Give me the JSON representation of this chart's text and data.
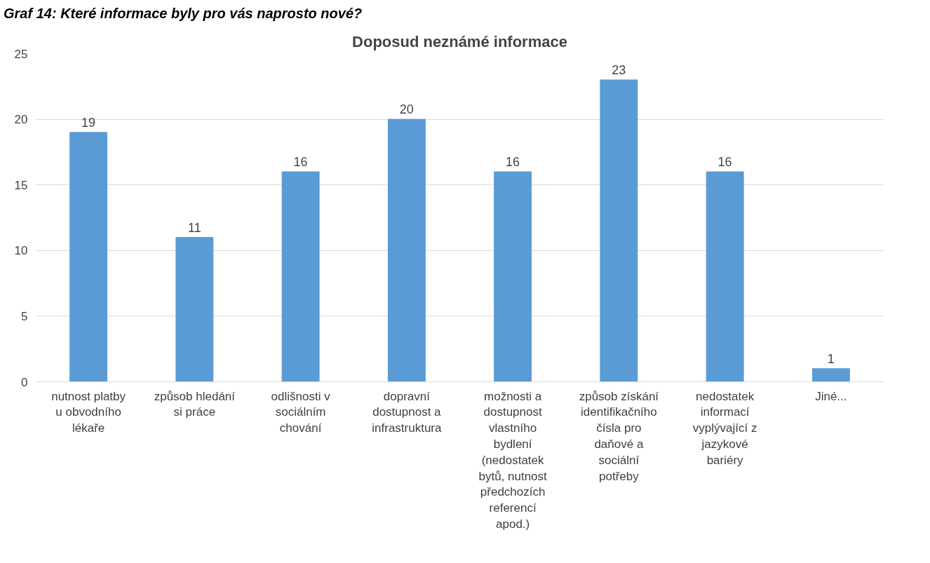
{
  "chart_data": {
    "type": "bar",
    "title": "Doposud neznámé informace",
    "annotations": [
      "Graf 14: Které informace byly pro vás naprosto nové?"
    ],
    "categories": [
      "nutnost platby u obvodního lékaře",
      "způsob hledání si práce",
      "odlišnosti v sociálním chování",
      "dopravní dostupnost a infrastruktura",
      "možnosti a dostupnost vlastního bydlení (nedostatek bytů, nutnost předchozích referencí apod.)",
      "způsob získání identifikačního čísla pro daňové a sociální potřeby",
      "nedostatek informací vyplývající z jazykové bariéry",
      "Jiné..."
    ],
    "values": [
      19,
      11,
      16,
      20,
      16,
      23,
      16,
      1
    ],
    "color": "#5b9bd5",
    "ylim": [
      0,
      25
    ],
    "yticks": [
      0,
      5,
      10,
      15,
      20,
      25
    ],
    "grid": "y",
    "data_labels": true
  }
}
